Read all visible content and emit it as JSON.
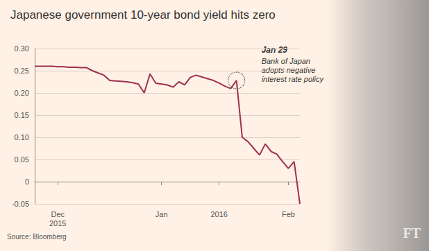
{
  "chart_data": {
    "type": "line",
    "title": "Japanese government 10-year bond yield hits zero",
    "source": "Source: Bloomberg",
    "logo": "FT",
    "categories": [
      null,
      null,
      null,
      null,
      "Dec\n2015",
      null,
      null,
      null,
      null,
      null,
      null,
      null,
      null,
      null,
      null,
      null,
      null,
      null,
      null,
      null,
      null,
      null,
      "Jan",
      null,
      null,
      null,
      null,
      null,
      null,
      null,
      null,
      null,
      "2016",
      null,
      null,
      null,
      null,
      null,
      null,
      null,
      null,
      null,
      null,
      null,
      "Feb",
      null,
      null
    ],
    "values": [
      0.26,
      0.26,
      0.26,
      0.26,
      0.259,
      0.259,
      0.258,
      0.258,
      0.257,
      0.257,
      0.25,
      0.245,
      0.24,
      0.228,
      0.227,
      0.226,
      0.225,
      0.223,
      0.22,
      0.2,
      0.243,
      0.222,
      0.22,
      0.218,
      0.213,
      0.225,
      0.218,
      0.235,
      0.24,
      0.236,
      0.232,
      0.228,
      0.222,
      0.215,
      0.21,
      0.228,
      0.1,
      0.09,
      0.075,
      0.06,
      0.085,
      0.068,
      0.062,
      0.045,
      0.03,
      0.045,
      -0.05
    ],
    "color": "#9e2f50",
    "ylim": [
      -0.05,
      0.3
    ],
    "yticks": [
      {
        "value": 0.3,
        "label": "0.30"
      },
      0.25,
      {
        "value": 0.2,
        "label": "0.20"
      },
      0.15,
      {
        "value": 0.1,
        "label": "0.10"
      },
      0.05,
      0,
      -0.05
    ],
    "grid": true,
    "annotations": [
      {
        "point": 35,
        "title": "Jan 29",
        "text": "Bank of Japan\nadopts negative\ninterest rate policy"
      }
    ]
  }
}
